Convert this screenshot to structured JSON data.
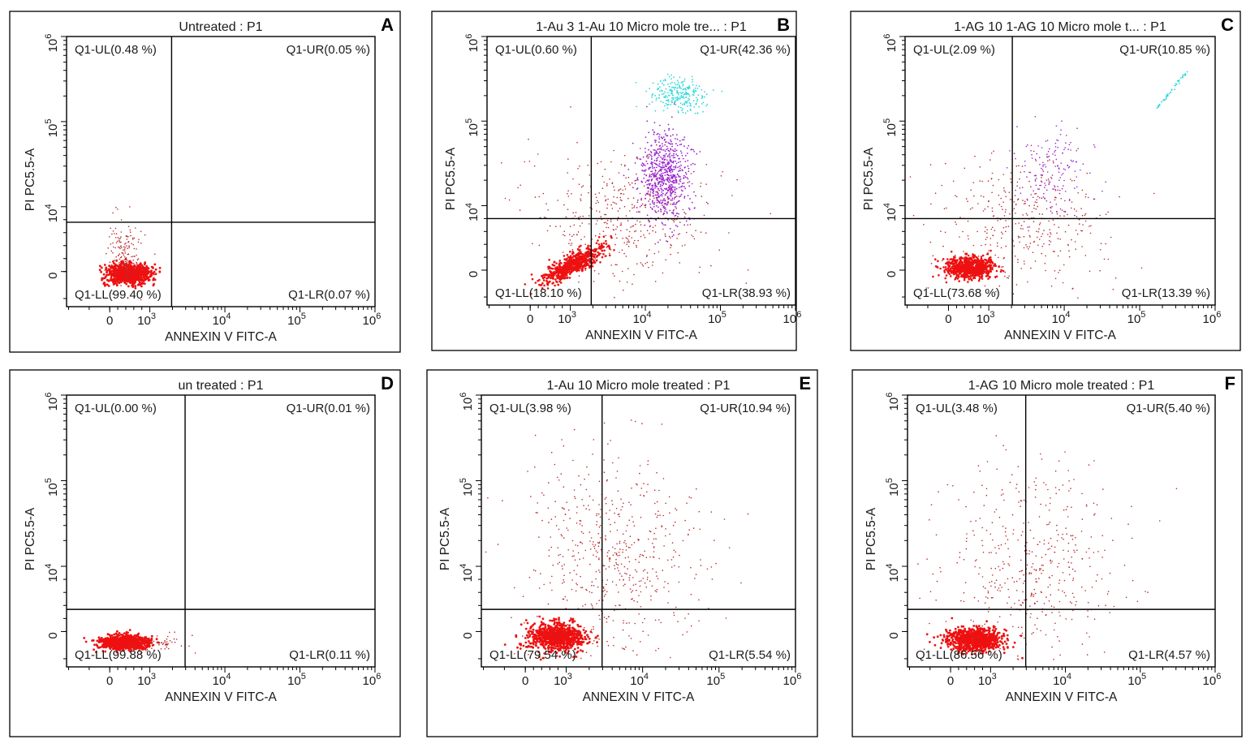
{
  "chart_data": [
    {
      "panel": "A",
      "type": "scatter",
      "title": "Untreated : P1",
      "xlabel": "ANNEXIN V FITC-A",
      "ylabel": "PI PC5.5-A",
      "x_ticks": [
        "0",
        "10",
        "10",
        "10",
        "10"
      ],
      "x_tick_exponents": [
        "",
        "3",
        "4",
        "5",
        "6"
      ],
      "y_ticks": [
        "0",
        "10",
        "10",
        "10"
      ],
      "y_tick_exponents": [
        "",
        "4",
        "5",
        "6"
      ],
      "quadrants": {
        "UL": "Q1-UL(0.48 %)",
        "UR": "Q1-UR(0.05 %)",
        "LL": "Q1-LL(99.40 %)",
        "LR": "Q1-LR(0.07 %)"
      },
      "percentages": {
        "UL": 0.48,
        "UR": 0.05,
        "LL": 99.4,
        "LR": 0.07
      },
      "gate": {
        "x": 1950,
        "y": 7600
      }
    },
    {
      "panel": "B",
      "type": "scatter",
      "title": "1-Au 3 1-Au 10 Micro mole tre... : P1",
      "xlabel": "ANNEXIN V FITC-A",
      "ylabel": "PI PC5.5-A",
      "x_ticks": [
        "0",
        "10",
        "10",
        "10",
        "10"
      ],
      "x_tick_exponents": [
        "",
        "3",
        "4",
        "5",
        "6"
      ],
      "y_ticks": [
        "0",
        "10",
        "10",
        "10"
      ],
      "y_tick_exponents": [
        "",
        "4",
        "5",
        "6"
      ],
      "quadrants": {
        "UL": "Q1-UL(0.60 %)",
        "UR": "Q1-UR(42.36 %)",
        "LL": "Q1-LL(18.10 %)",
        "LR": "Q1-LR(38.93 %)"
      },
      "percentages": {
        "UL": 0.6,
        "UR": 42.36,
        "LL": 18.1,
        "LR": 38.93
      },
      "gate": {
        "x": 1900,
        "y": 8000
      }
    },
    {
      "panel": "C",
      "type": "scatter",
      "title": "1-AG 10 1-AG 10 Micro mole t... : P1",
      "xlabel": "ANNEXIN V FITC-A",
      "ylabel": "PI PC5.5-A",
      "x_ticks": [
        "0",
        "10",
        "10",
        "10",
        "10"
      ],
      "x_tick_exponents": [
        "",
        "3",
        "4",
        "5",
        "6"
      ],
      "y_ticks": [
        "0",
        "10",
        "10",
        "10"
      ],
      "y_tick_exponents": [
        "",
        "4",
        "5",
        "6"
      ],
      "quadrants": {
        "UL": "Q1-UL(2.09 %)",
        "UR": "Q1-UR(10.85 %)",
        "LL": "Q1-LL(73.68 %)",
        "LR": "Q1-LR(13.39 %)"
      },
      "percentages": {
        "UL": 2.09,
        "UR": 10.85,
        "LL": 73.68,
        "LR": 13.39
      },
      "gate": {
        "x": 2050,
        "y": 8000
      }
    },
    {
      "panel": "D",
      "type": "scatter",
      "title": "un treated : P1",
      "xlabel": "ANNEXIN V FITC-A",
      "ylabel": "PI PC5.5-A",
      "x_ticks": [
        "0",
        "10",
        "10",
        "10",
        "10"
      ],
      "x_tick_exponents": [
        "",
        "3",
        "4",
        "5",
        "6"
      ],
      "y_ticks": [
        "0",
        "10",
        "10",
        "10"
      ],
      "y_tick_exponents": [
        "",
        "4",
        "5",
        "6"
      ],
      "quadrants": {
        "UL": "Q1-UL(0.00 %)",
        "UR": "Q1-UR(0.01 %)",
        "LL": "Q1-LL(99.88 %)",
        "LR": "Q1-LR(0.11 %)"
      },
      "percentages": {
        "UL": 0.0,
        "UR": 0.01,
        "LL": 99.88,
        "LR": 0.11
      },
      "gate": {
        "x": 2950,
        "y": 3400
      }
    },
    {
      "panel": "E",
      "type": "scatter",
      "title": "1-Au 10 Micro mole treated : P1",
      "xlabel": "ANNEXIN V FITC-A",
      "ylabel": "PI PC5.5-A",
      "x_ticks": [
        "0",
        "10",
        "10",
        "10",
        "10"
      ],
      "x_tick_exponents": [
        "",
        "3",
        "4",
        "5",
        "6"
      ],
      "y_ticks": [
        "0",
        "10",
        "10",
        "10"
      ],
      "y_tick_exponents": [
        "",
        "4",
        "5",
        "6"
      ],
      "quadrants": {
        "UL": "Q1-UL(3.98 %)",
        "UR": "Q1-UR(10.94 %)",
        "LL": "Q1-LL(79.54 %)",
        "LR": "Q1-LR(5.54 %)"
      },
      "percentages": {
        "UL": 3.98,
        "UR": 10.94,
        "LL": 79.54,
        "LR": 5.54
      },
      "gate": {
        "x": 2950,
        "y": 3400
      }
    },
    {
      "panel": "F",
      "type": "scatter",
      "title": "1-AG 10 Micro mole treated : P1",
      "xlabel": "ANNEXIN V FITC-A",
      "ylabel": "PI PC5.5-A",
      "x_ticks": [
        "0",
        "10",
        "10",
        "10",
        "10"
      ],
      "x_tick_exponents": [
        "",
        "3",
        "4",
        "5",
        "6"
      ],
      "y_ticks": [
        "0",
        "10",
        "10",
        "10"
      ],
      "y_tick_exponents": [
        "",
        "4",
        "5",
        "6"
      ],
      "quadrants": {
        "UL": "Q1-UL(3.48 %)",
        "UR": "Q1-UR(5.40 %)",
        "LL": "Q1-LL(86.56 %)",
        "LR": "Q1-LR(4.57 %)"
      },
      "percentages": {
        "UL": 3.48,
        "UR": 5.4,
        "LL": 86.56,
        "LR": 4.57
      },
      "gate": {
        "x": 2950,
        "y": 3400
      }
    }
  ],
  "colors": {
    "population": "#ee1111",
    "dots": "#bb2a2a",
    "apoptotic": "#9a22cc",
    "late": "#2ed8d8"
  }
}
